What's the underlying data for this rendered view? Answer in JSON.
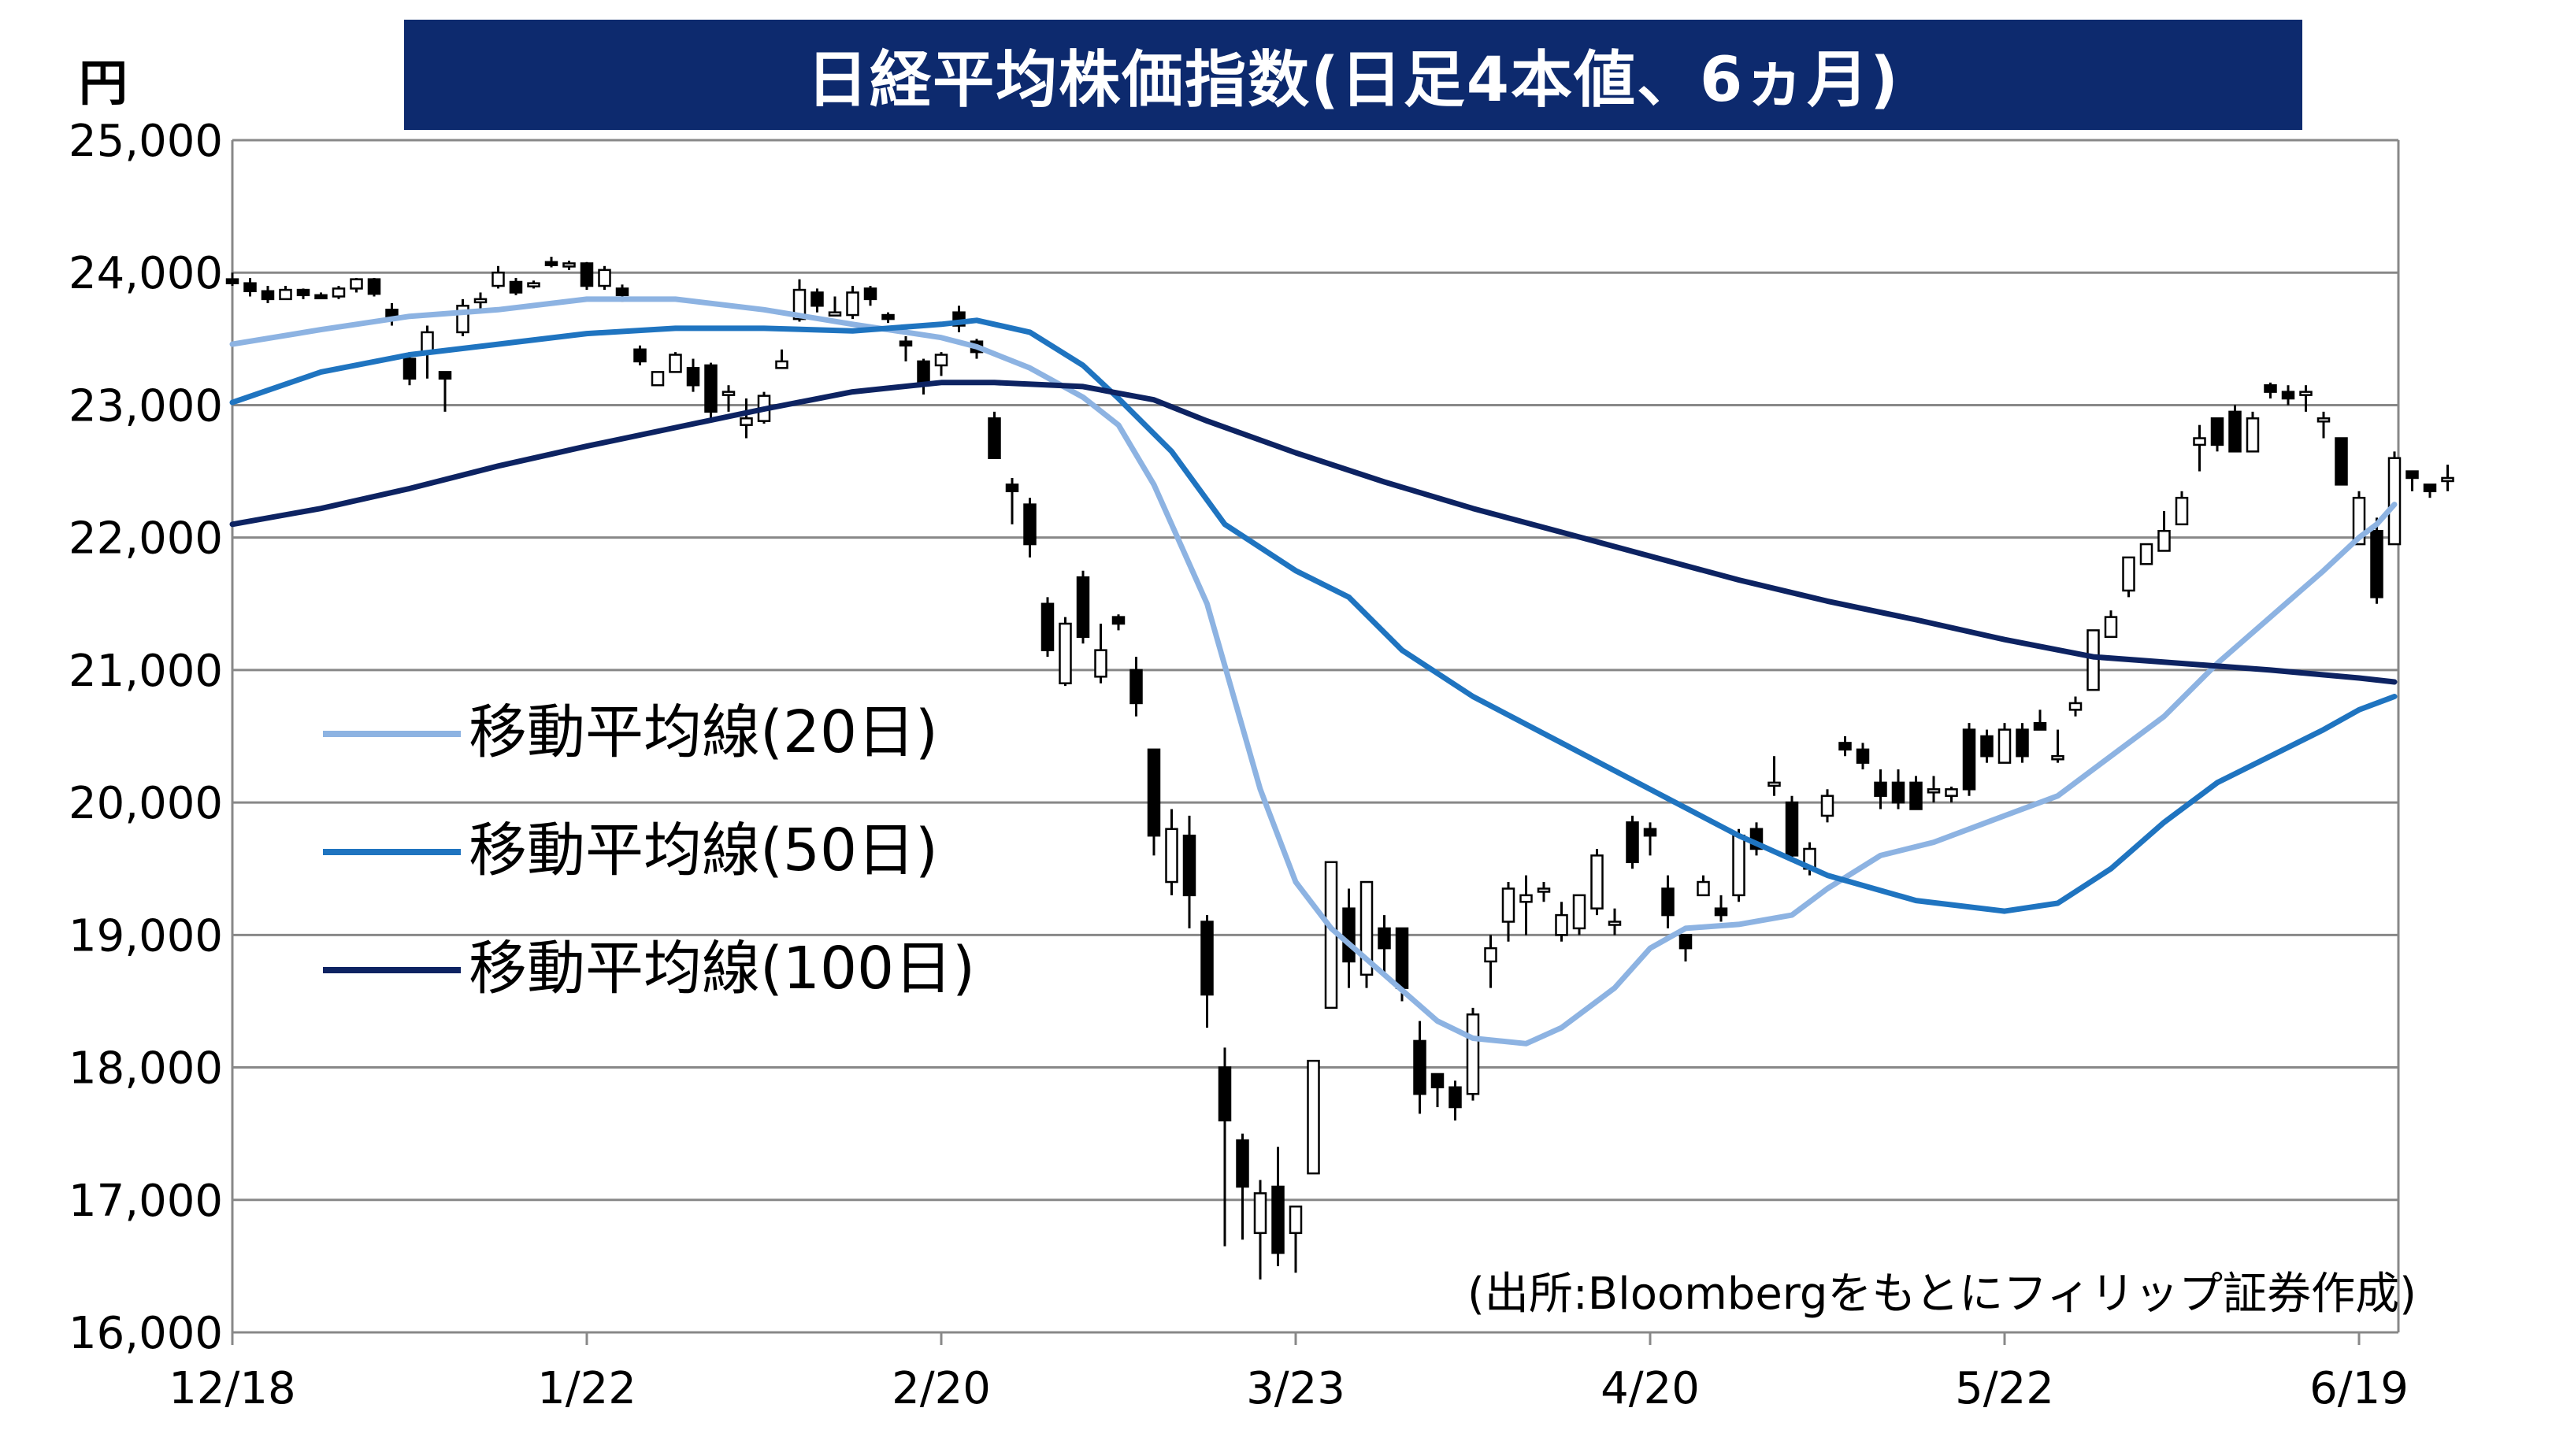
{
  "title": "日経平均株価指数(日足4本値、6ヵ月)",
  "y_unit": "円",
  "source": "(出所:Bloombergをもとにフィリップ証券作成)",
  "legend": [
    {
      "label": "移動平均線(20日)",
      "color": "#8db3e2"
    },
    {
      "label": "移動平均線(50日)",
      "color": "#1f74c0"
    },
    {
      "label": "移動平均線(100日)",
      "color": "#0d2362"
    }
  ],
  "colors": {
    "up_fill": "#ffffff",
    "down_fill": "#000000",
    "grid": "#888888",
    "axis": "#888888"
  },
  "chart_data": {
    "type": "candlestick",
    "title": "日経平均株価指数(日足4本値、6ヵ月)",
    "ylabel": "円",
    "ylim": [
      16000,
      25000
    ],
    "yticks": [
      "16,000",
      "17,000",
      "18,000",
      "19,000",
      "20,000",
      "21,000",
      "22,000",
      "23,000",
      "24,000",
      "25,000"
    ],
    "ytick_values": [
      16000,
      17000,
      18000,
      19000,
      20000,
      21000,
      22000,
      23000,
      24000,
      25000
    ],
    "xtick_labels": [
      "12/18",
      "1/22",
      "2/20",
      "3/23",
      "4/20",
      "5/22",
      "6/19"
    ],
    "xtick_index": [
      0,
      20,
      40,
      60,
      80,
      100,
      120
    ],
    "grid": "horizontal",
    "legend_position": "left-center",
    "candles": [
      [
        23950,
        24000,
        23900,
        23920
      ],
      [
        23920,
        23960,
        23820,
        23860
      ],
      [
        23860,
        23900,
        23770,
        23800
      ],
      [
        23800,
        23900,
        23800,
        23870
      ],
      [
        23870,
        23880,
        23800,
        23830
      ],
      [
        23830,
        23850,
        23810,
        23820
      ],
      [
        23820,
        23900,
        23800,
        23880
      ],
      [
        23880,
        23960,
        23850,
        23950
      ],
      [
        23950,
        23960,
        23820,
        23840
      ],
      [
        23720,
        23770,
        23600,
        23650
      ],
      [
        23350,
        23400,
        23150,
        23200
      ],
      [
        23400,
        23600,
        23200,
        23550
      ],
      [
        23250,
        23250,
        22950,
        23200
      ],
      [
        23550,
        23800,
        23520,
        23750
      ],
      [
        23780,
        23850,
        23730,
        23800
      ],
      [
        23900,
        24050,
        23880,
        24000
      ],
      [
        23930,
        23960,
        23830,
        23850
      ],
      [
        23920,
        23940,
        23880,
        23920
      ],
      [
        24080,
        24120,
        24040,
        24060
      ],
      [
        24060,
        24090,
        24020,
        24070
      ],
      [
        24070,
        24080,
        23870,
        23900
      ],
      [
        23900,
        24050,
        23870,
        24020
      ],
      [
        23880,
        23910,
        23780,
        23830
      ],
      [
        23420,
        23450,
        23300,
        23330
      ],
      [
        23150,
        23250,
        23150,
        23250
      ],
      [
        23250,
        23400,
        23250,
        23380
      ],
      [
        23280,
        23350,
        23100,
        23150
      ],
      [
        23300,
        23320,
        22880,
        22950
      ],
      [
        23100,
        23150,
        22950,
        23100
      ],
      [
        22850,
        23050,
        22750,
        22900
      ],
      [
        22880,
        23100,
        22860,
        23070
      ],
      [
        23280,
        23420,
        23280,
        23330
      ],
      [
        23650,
        23950,
        23630,
        23870
      ],
      [
        23850,
        23880,
        23700,
        23750
      ],
      [
        23700,
        23820,
        23680,
        23700
      ],
      [
        23680,
        23900,
        23650,
        23850
      ],
      [
        23880,
        23900,
        23750,
        23800
      ],
      [
        23680,
        23700,
        23620,
        23650
      ],
      [
        23480,
        23520,
        23330,
        23450
      ],
      [
        23330,
        23350,
        23080,
        23150
      ],
      [
        23300,
        23400,
        23220,
        23380
      ],
      [
        23700,
        23750,
        23550,
        23600
      ],
      [
        23480,
        23500,
        23350,
        23400
      ],
      [
        22900,
        22950,
        22600,
        22600
      ],
      [
        22400,
        22450,
        22100,
        22350
      ],
      [
        22250,
        22300,
        21850,
        21950
      ],
      [
        21500,
        21550,
        21100,
        21150
      ],
      [
        20900,
        21400,
        20880,
        21350
      ],
      [
        21700,
        21750,
        21200,
        21250
      ],
      [
        20950,
        21350,
        20900,
        21150
      ],
      [
        21400,
        21420,
        21300,
        21350
      ],
      [
        21000,
        21100,
        20650,
        20750
      ],
      [
        20400,
        20400,
        19600,
        19750
      ],
      [
        19400,
        19950,
        19300,
        19800
      ],
      [
        19750,
        19900,
        19050,
        19300
      ],
      [
        19100,
        19150,
        18300,
        18550
      ],
      [
        18000,
        18150,
        16650,
        17600
      ],
      [
        17450,
        17500,
        16700,
        17100
      ],
      [
        16750,
        17150,
        16400,
        17050
      ],
      [
        17100,
        17400,
        16500,
        16600
      ],
      [
        16750,
        16950,
        16450,
        16950
      ],
      [
        17200,
        18050,
        17200,
        18050
      ],
      [
        18450,
        19550,
        18450,
        19550
      ],
      [
        19200,
        19350,
        18600,
        18800
      ],
      [
        18700,
        19400,
        18600,
        19400
      ],
      [
        19050,
        19150,
        18700,
        18900
      ],
      [
        19050,
        19050,
        18500,
        18600
      ],
      [
        18200,
        18350,
        17650,
        17800
      ],
      [
        17950,
        17950,
        17700,
        17850
      ],
      [
        17850,
        17900,
        17600,
        17700
      ],
      [
        17800,
        18450,
        17750,
        18400
      ],
      [
        18800,
        19000,
        18600,
        18900
      ],
      [
        19100,
        19400,
        18950,
        19350
      ],
      [
        19250,
        19450,
        19000,
        19300
      ],
      [
        19350,
        19400,
        19250,
        19350
      ],
      [
        19000,
        19250,
        18950,
        19150
      ],
      [
        19050,
        19300,
        19000,
        19300
      ],
      [
        19200,
        19650,
        19150,
        19600
      ],
      [
        19100,
        19200,
        19000,
        19100
      ],
      [
        19850,
        19900,
        19500,
        19550
      ],
      [
        19800,
        19850,
        19600,
        19750
      ],
      [
        19350,
        19450,
        19050,
        19150
      ],
      [
        19000,
        19000,
        18800,
        18900
      ],
      [
        19300,
        19450,
        19300,
        19400
      ],
      [
        19200,
        19300,
        19100,
        19150
      ],
      [
        19300,
        19800,
        19250,
        19750
      ],
      [
        19800,
        19850,
        19600,
        19650
      ],
      [
        20150,
        20350,
        20050,
        20150
      ],
      [
        20000,
        20050,
        19550,
        19600
      ],
      [
        19500,
        19700,
        19450,
        19650
      ],
      [
        19900,
        20100,
        19850,
        20050
      ],
      [
        20450,
        20500,
        20350,
        20400
      ],
      [
        20400,
        20450,
        20250,
        20300
      ],
      [
        20150,
        20250,
        19950,
        20050
      ],
      [
        20150,
        20250,
        19950,
        20000
      ],
      [
        20150,
        20200,
        19950,
        19950
      ],
      [
        20100,
        20200,
        20000,
        20100
      ],
      [
        20050,
        20120,
        20000,
        20100
      ],
      [
        20550,
        20600,
        20050,
        20100
      ],
      [
        20500,
        20550,
        20300,
        20350
      ],
      [
        20300,
        20600,
        20300,
        20550
      ],
      [
        20550,
        20600,
        20300,
        20350
      ],
      [
        20600,
        20700,
        20550,
        20550
      ],
      [
        20350,
        20550,
        20300,
        20350
      ],
      [
        20700,
        20800,
        20650,
        20750
      ],
      [
        20850,
        21300,
        20850,
        21300
      ],
      [
        21250,
        21450,
        21250,
        21400
      ],
      [
        21600,
        21850,
        21550,
        21850
      ],
      [
        21800,
        21950,
        21800,
        21950
      ],
      [
        21900,
        22200,
        21900,
        22050
      ],
      [
        22100,
        22350,
        22100,
        22300
      ],
      [
        22700,
        22850,
        22500,
        22750
      ],
      [
        22900,
        22900,
        22650,
        22700
      ],
      [
        22950,
        23000,
        22650,
        22650
      ],
      [
        22650,
        22950,
        22650,
        22900
      ],
      [
        23150,
        23170,
        23050,
        23100
      ],
      [
        23100,
        23150,
        23000,
        23050
      ],
      [
        23100,
        23150,
        22950,
        23100
      ],
      [
        22900,
        22950,
        22750,
        22900
      ],
      [
        22750,
        22750,
        22400,
        22400
      ],
      [
        21950,
        22350,
        21950,
        22300
      ],
      [
        22050,
        22150,
        21500,
        21550
      ],
      [
        21950,
        22650,
        21950,
        22600
      ],
      [
        22500,
        22500,
        22350,
        22450
      ],
      [
        22400,
        22400,
        22300,
        22350
      ],
      [
        22450,
        22550,
        22350,
        22450
      ]
    ],
    "series": [
      {
        "name": "移動平均線(20日)",
        "values": [
          [
            0,
            23460
          ],
          [
            5,
            23570
          ],
          [
            10,
            23670
          ],
          [
            15,
            23720
          ],
          [
            20,
            23800
          ],
          [
            25,
            23800
          ],
          [
            30,
            23720
          ],
          [
            35,
            23610
          ],
          [
            40,
            23510
          ],
          [
            42,
            23440
          ],
          [
            45,
            23280
          ],
          [
            48,
            23060
          ],
          [
            50,
            22850
          ],
          [
            52,
            22400
          ],
          [
            55,
            21500
          ],
          [
            58,
            20100
          ],
          [
            60,
            19400
          ],
          [
            62,
            19050
          ],
          [
            65,
            18700
          ],
          [
            68,
            18350
          ],
          [
            70,
            18220
          ],
          [
            73,
            18180
          ],
          [
            75,
            18300
          ],
          [
            78,
            18600
          ],
          [
            80,
            18900
          ],
          [
            82,
            19050
          ],
          [
            85,
            19080
          ],
          [
            88,
            19150
          ],
          [
            90,
            19350
          ],
          [
            93,
            19600
          ],
          [
            96,
            19700
          ],
          [
            99,
            19850
          ],
          [
            100,
            19900
          ],
          [
            103,
            20050
          ],
          [
            106,
            20350
          ],
          [
            109,
            20650
          ],
          [
            112,
            21050
          ],
          [
            115,
            21400
          ],
          [
            118,
            21750
          ],
          [
            120,
            22000
          ],
          [
            121,
            22100
          ],
          [
            122,
            22250
          ]
        ]
      },
      {
        "name": "移動平均線(50日)",
        "values": [
          [
            0,
            23020
          ],
          [
            5,
            23250
          ],
          [
            10,
            23380
          ],
          [
            15,
            23460
          ],
          [
            20,
            23540
          ],
          [
            25,
            23580
          ],
          [
            30,
            23580
          ],
          [
            35,
            23560
          ],
          [
            40,
            23610
          ],
          [
            42,
            23640
          ],
          [
            45,
            23550
          ],
          [
            48,
            23300
          ],
          [
            50,
            23050
          ],
          [
            53,
            22650
          ],
          [
            56,
            22100
          ],
          [
            60,
            21750
          ],
          [
            63,
            21550
          ],
          [
            66,
            21150
          ],
          [
            70,
            20800
          ],
          [
            75,
            20450
          ],
          [
            80,
            20100
          ],
          [
            85,
            19750
          ],
          [
            90,
            19450
          ],
          [
            95,
            19260
          ],
          [
            100,
            19180
          ],
          [
            103,
            19240
          ],
          [
            106,
            19500
          ],
          [
            109,
            19850
          ],
          [
            112,
            20150
          ],
          [
            115,
            20350
          ],
          [
            118,
            20550
          ],
          [
            120,
            20700
          ],
          [
            122,
            20800
          ]
        ]
      },
      {
        "name": "移動平均線(100日)",
        "values": [
          [
            0,
            22100
          ],
          [
            5,
            22220
          ],
          [
            10,
            22370
          ],
          [
            15,
            22540
          ],
          [
            20,
            22690
          ],
          [
            25,
            22830
          ],
          [
            30,
            22970
          ],
          [
            35,
            23100
          ],
          [
            40,
            23170
          ],
          [
            43,
            23170
          ],
          [
            48,
            23140
          ],
          [
            52,
            23040
          ],
          [
            55,
            22880
          ],
          [
            60,
            22640
          ],
          [
            65,
            22420
          ],
          [
            70,
            22220
          ],
          [
            75,
            22040
          ],
          [
            80,
            21860
          ],
          [
            85,
            21680
          ],
          [
            90,
            21520
          ],
          [
            95,
            21380
          ],
          [
            100,
            21230
          ],
          [
            105,
            21100
          ],
          [
            110,
            21050
          ],
          [
            115,
            21000
          ],
          [
            120,
            20940
          ],
          [
            122,
            20910
          ]
        ]
      }
    ]
  }
}
